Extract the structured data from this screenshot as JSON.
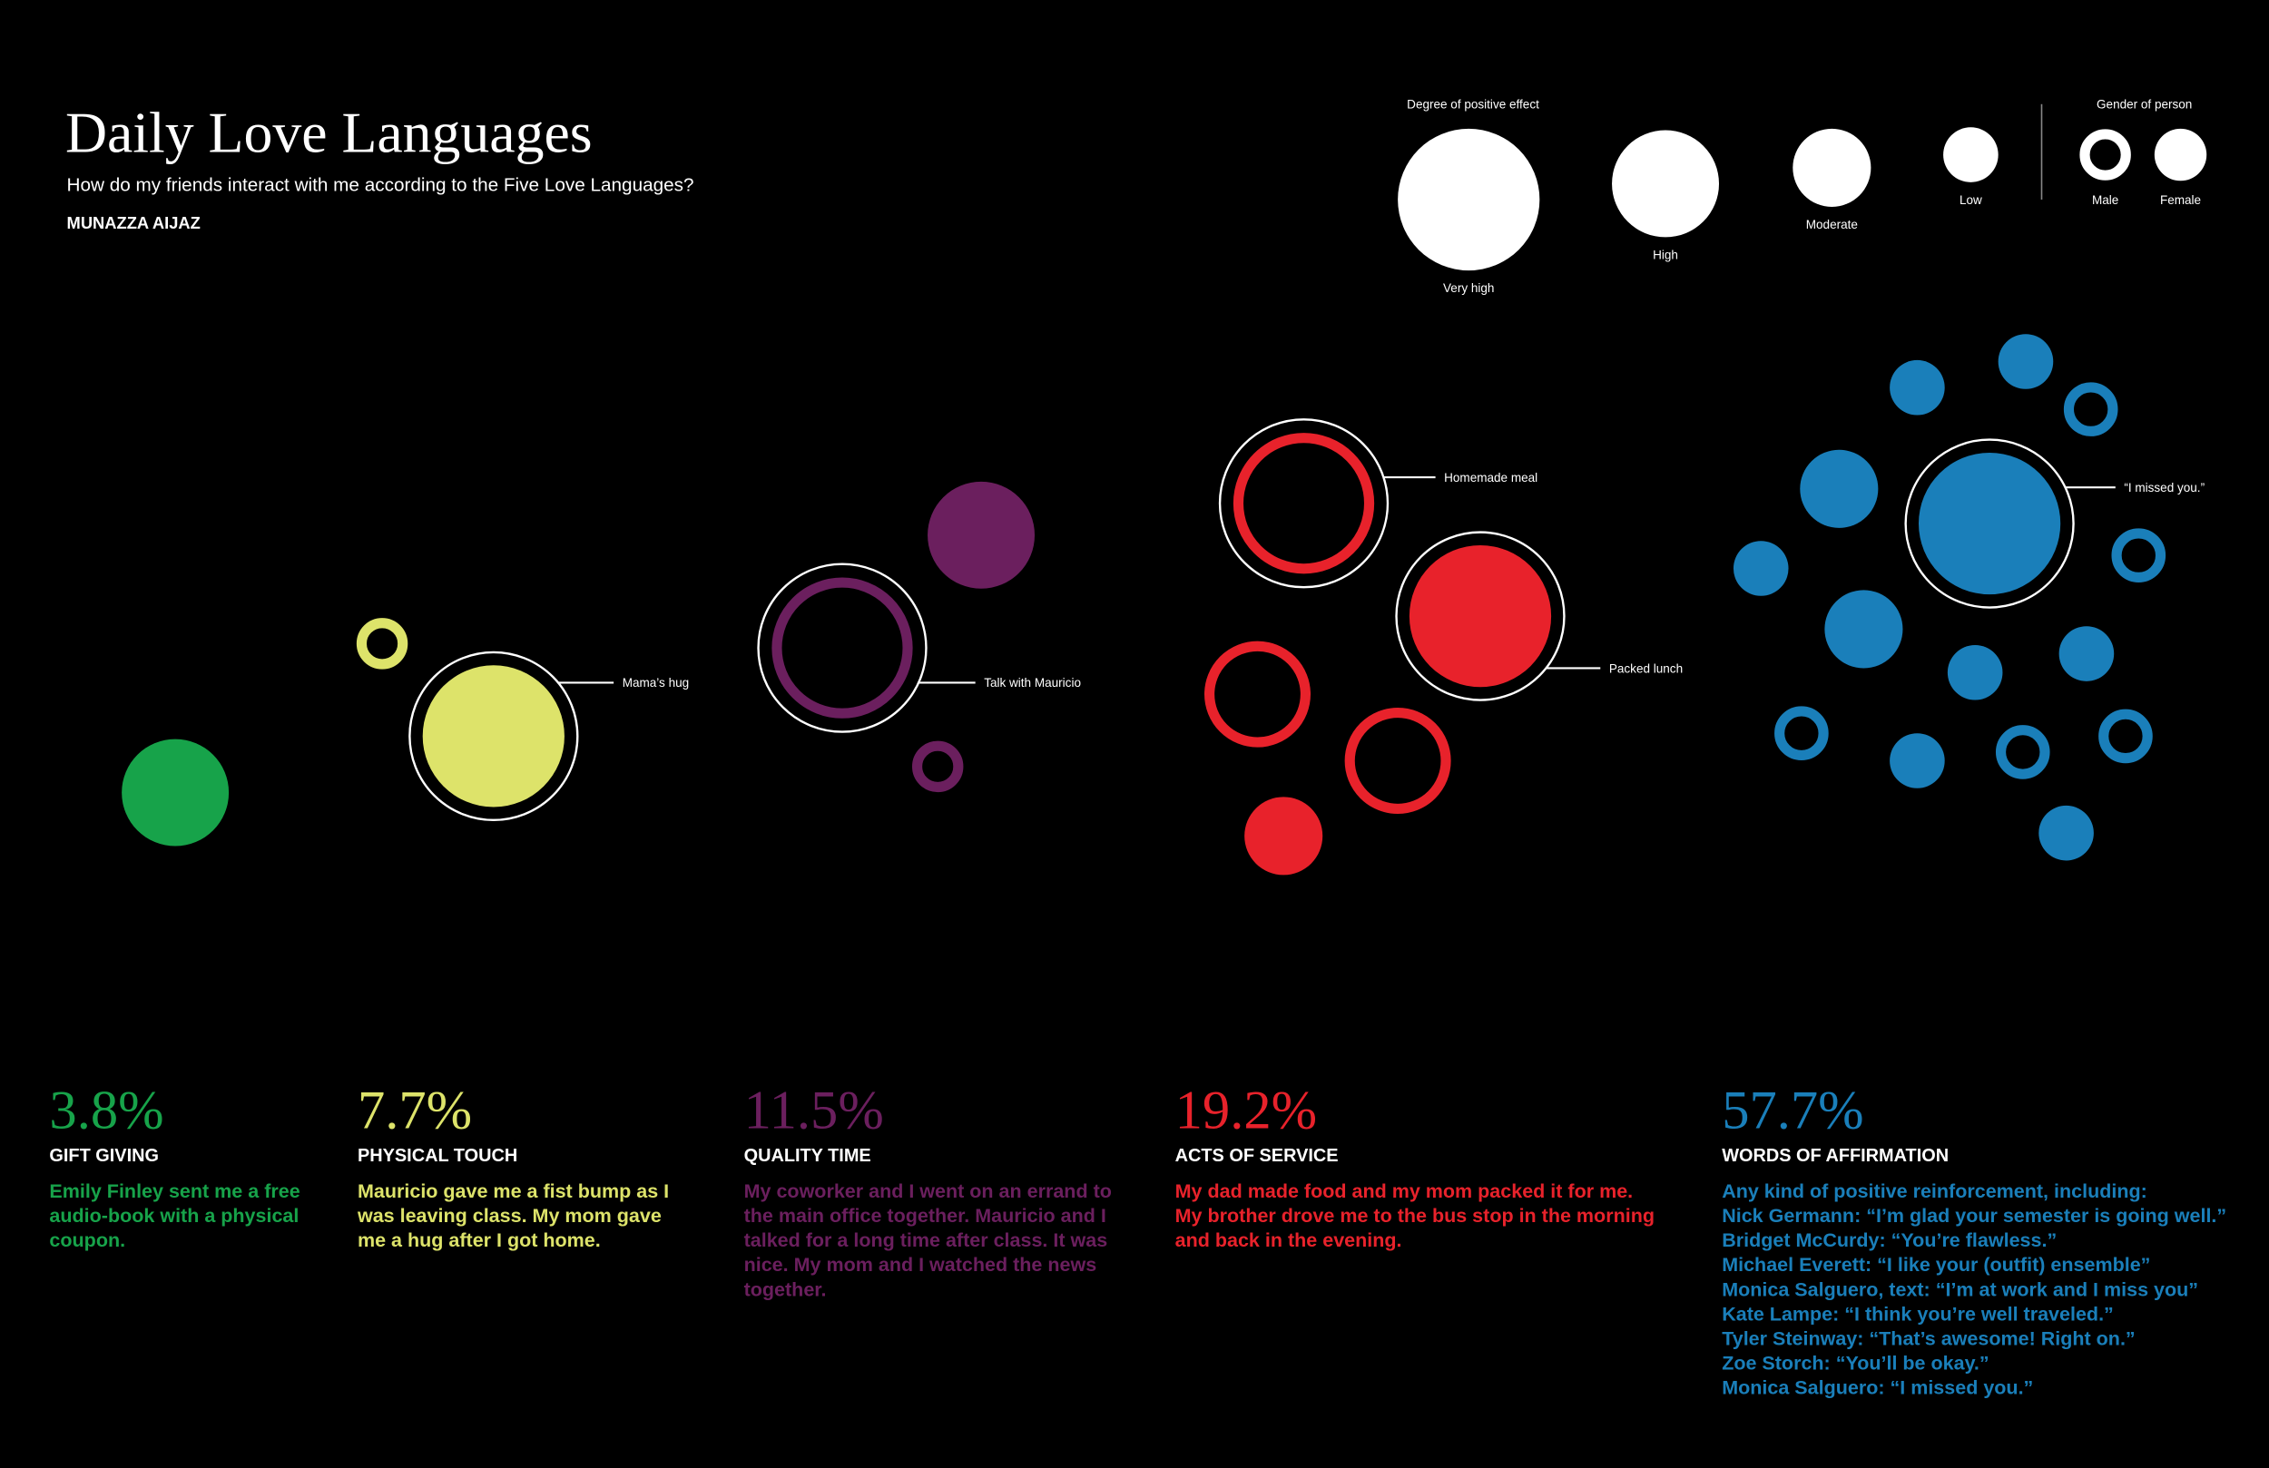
{
  "header": {
    "title": "Daily Love Languages",
    "subtitle": "How do my friends interact with me according to the Five Love Languages?",
    "author": "MUNAZZA AIJAZ"
  },
  "legend": {
    "effect_title": "Degree of positive effect",
    "levels": [
      "Very high",
      "High",
      "Moderate",
      "Low"
    ],
    "gender_title": "Gender of person",
    "genders": [
      "Male",
      "Female"
    ]
  },
  "groups": [
    {
      "percent": "3.8%",
      "name": "GIFT GIVING",
      "color": "#17a34a",
      "description": [
        "Emily Finley sent me a free",
        "audio-book with a physical",
        "coupon."
      ],
      "bubbles": [
        {
          "level": "High",
          "gender": "Female"
        }
      ]
    },
    {
      "percent": "7.7%",
      "name": "PHYSICAL TOUCH",
      "color": "#dde36a",
      "description": [
        "Mauricio gave me a fist bump as I",
        "was leaving class. My mom gave",
        "me a hug after I got home."
      ],
      "bubbles": [
        {
          "level": "Low",
          "gender": "Male"
        },
        {
          "level": "Very high",
          "gender": "Female",
          "callout": "Mama’s hug"
        }
      ]
    },
    {
      "percent": "11.5%",
      "name": "QUALITY TIME",
      "color": "#6b1f5e",
      "description": [
        "My coworker and I went on an errand to",
        "the main office together. Mauricio and I",
        "talked for a long time after class. It was",
        "nice.  My mom and I watched the news",
        "together."
      ],
      "bubbles": [
        {
          "level": "High",
          "gender": "Female"
        },
        {
          "level": "Very high",
          "gender": "Male",
          "callout": "Talk with Mauricio"
        },
        {
          "level": "Low",
          "gender": "Male"
        }
      ]
    },
    {
      "percent": "19.2%",
      "name": "ACTS OF SERVICE",
      "color": "#e8222b",
      "description": [
        "My dad made food and my mom packed it for me.",
        "My brother drove me to the bus stop in the morning",
        "and back in the evening."
      ],
      "bubbles": [
        {
          "level": "Very high",
          "gender": "Male",
          "callout": "Homemade meal"
        },
        {
          "level": "Very high",
          "gender": "Female",
          "callout": "Packed lunch"
        },
        {
          "level": "High",
          "gender": "Male"
        },
        {
          "level": "High",
          "gender": "Male"
        },
        {
          "level": "Moderate",
          "gender": "Female"
        }
      ]
    },
    {
      "percent": "57.7%",
      "name": "WORDS OF AFFIRMATION",
      "color": "#1a7fba",
      "description": [
        "Any kind of positive reinforcement, including:",
        "Nick Germann: “I’m glad your semester is going well.”",
        "Bridget McCurdy: “You’re flawless.”",
        "Michael Everett: “I like your (outfit) ensemble”",
        "Monica Salguero, text: “I’m at work and I miss you”",
        "Kate Lampe: “I think you’re well traveled.”",
        "Tyler Steinway: “That’s awesome! Right on.”",
        "Zoe Storch: “You’ll be okay.”",
        "Monica Salguero: “I missed you.”"
      ],
      "bubbles": [
        {
          "level": "Very high",
          "gender": "Female",
          "callout": "“I missed you.”"
        },
        {
          "level": "Low",
          "gender": "Female"
        },
        {
          "level": "Low",
          "gender": "Female"
        },
        {
          "level": "Low",
          "gender": "Male"
        },
        {
          "level": "Moderate",
          "gender": "Female"
        },
        {
          "level": "Low",
          "gender": "Female"
        },
        {
          "level": "Low",
          "gender": "Male"
        },
        {
          "level": "Moderate",
          "gender": "Female"
        },
        {
          "level": "Low",
          "gender": "Female"
        },
        {
          "level": "Low",
          "gender": "Female"
        },
        {
          "level": "Low",
          "gender": "Male"
        },
        {
          "level": "Low",
          "gender": "Female"
        },
        {
          "level": "Low",
          "gender": "Male"
        },
        {
          "level": "Low",
          "gender": "Male"
        },
        {
          "level": "Low",
          "gender": "Female"
        }
      ]
    }
  ]
}
